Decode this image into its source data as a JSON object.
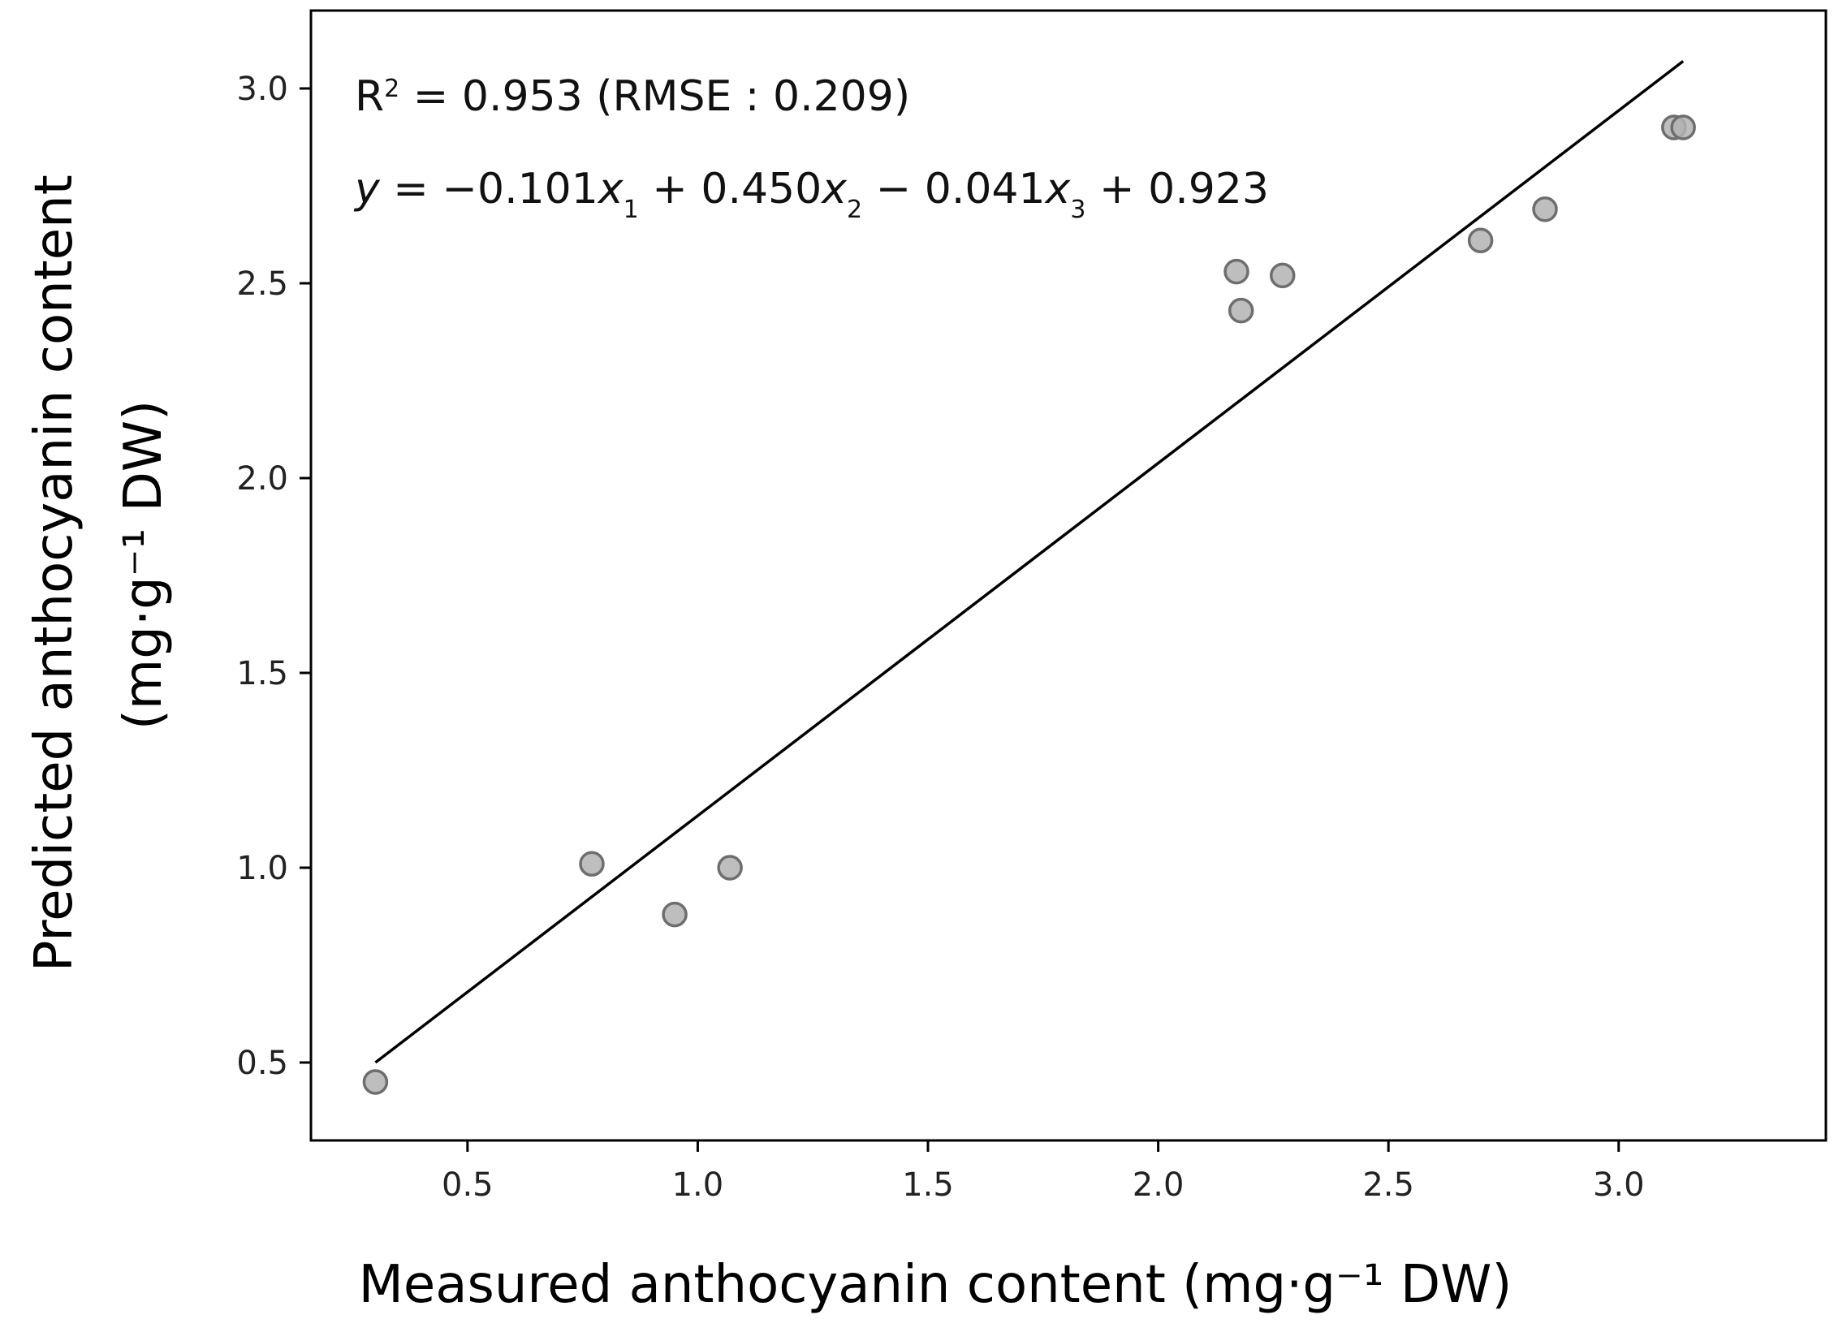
{
  "chart_data": {
    "type": "scatter",
    "xlabel": "Measured anthocyanin content (mg·g⁻¹ DW)",
    "ylabel_lines": [
      "Predicted anthocyanin content",
      "(mg·g⁻¹ DW)"
    ],
    "xlim": [
      0.16,
      3.45
    ],
    "ylim": [
      0.3,
      3.2
    ],
    "x_ticks": [
      0.5,
      1.0,
      1.5,
      2.0,
      2.5,
      3.0
    ],
    "x_tick_labels": [
      "0.5",
      "1.0",
      "1.5",
      "2.0",
      "2.5",
      "3.0"
    ],
    "y_ticks": [
      0.5,
      1.0,
      1.5,
      2.0,
      2.5,
      3.0
    ],
    "y_tick_labels": [
      "0.5",
      "1.0",
      "1.5",
      "2.0",
      "2.5",
      "3.0"
    ],
    "points": [
      {
        "x": 0.3,
        "y": 0.45
      },
      {
        "x": 0.77,
        "y": 1.01
      },
      {
        "x": 0.95,
        "y": 0.88
      },
      {
        "x": 1.07,
        "y": 1.0
      },
      {
        "x": 2.17,
        "y": 2.53
      },
      {
        "x": 2.18,
        "y": 2.43
      },
      {
        "x": 2.27,
        "y": 2.52
      },
      {
        "x": 2.7,
        "y": 2.61
      },
      {
        "x": 2.84,
        "y": 2.69
      },
      {
        "x": 3.12,
        "y": 2.9
      },
      {
        "x": 3.14,
        "y": 2.9
      }
    ],
    "fit_line": {
      "x": [
        0.3,
        3.14
      ],
      "y": [
        0.5,
        3.07
      ]
    },
    "annotations": {
      "r2_prefix": "R",
      "r2_sup": "2",
      "r2_rest": " = 0.953 (RMSE : 0.209)",
      "eq": [
        {
          "t": "y",
          "italic": true
        },
        {
          "t": " = −0.101"
        },
        {
          "t": "x",
          "italic": true
        },
        {
          "t": "1",
          "sub": true
        },
        {
          "t": " + 0.450"
        },
        {
          "t": "x",
          "italic": true
        },
        {
          "t": "2",
          "sub": true
        },
        {
          "t": " − 0.041"
        },
        {
          "t": "x",
          "italic": true
        },
        {
          "t": "3",
          "sub": true
        },
        {
          "t": " + 0.923"
        }
      ]
    },
    "grid": false,
    "marker_color": "#b3b3b3",
    "marker_edge_color": "#6e6e6e",
    "line_color": "#000000"
  }
}
